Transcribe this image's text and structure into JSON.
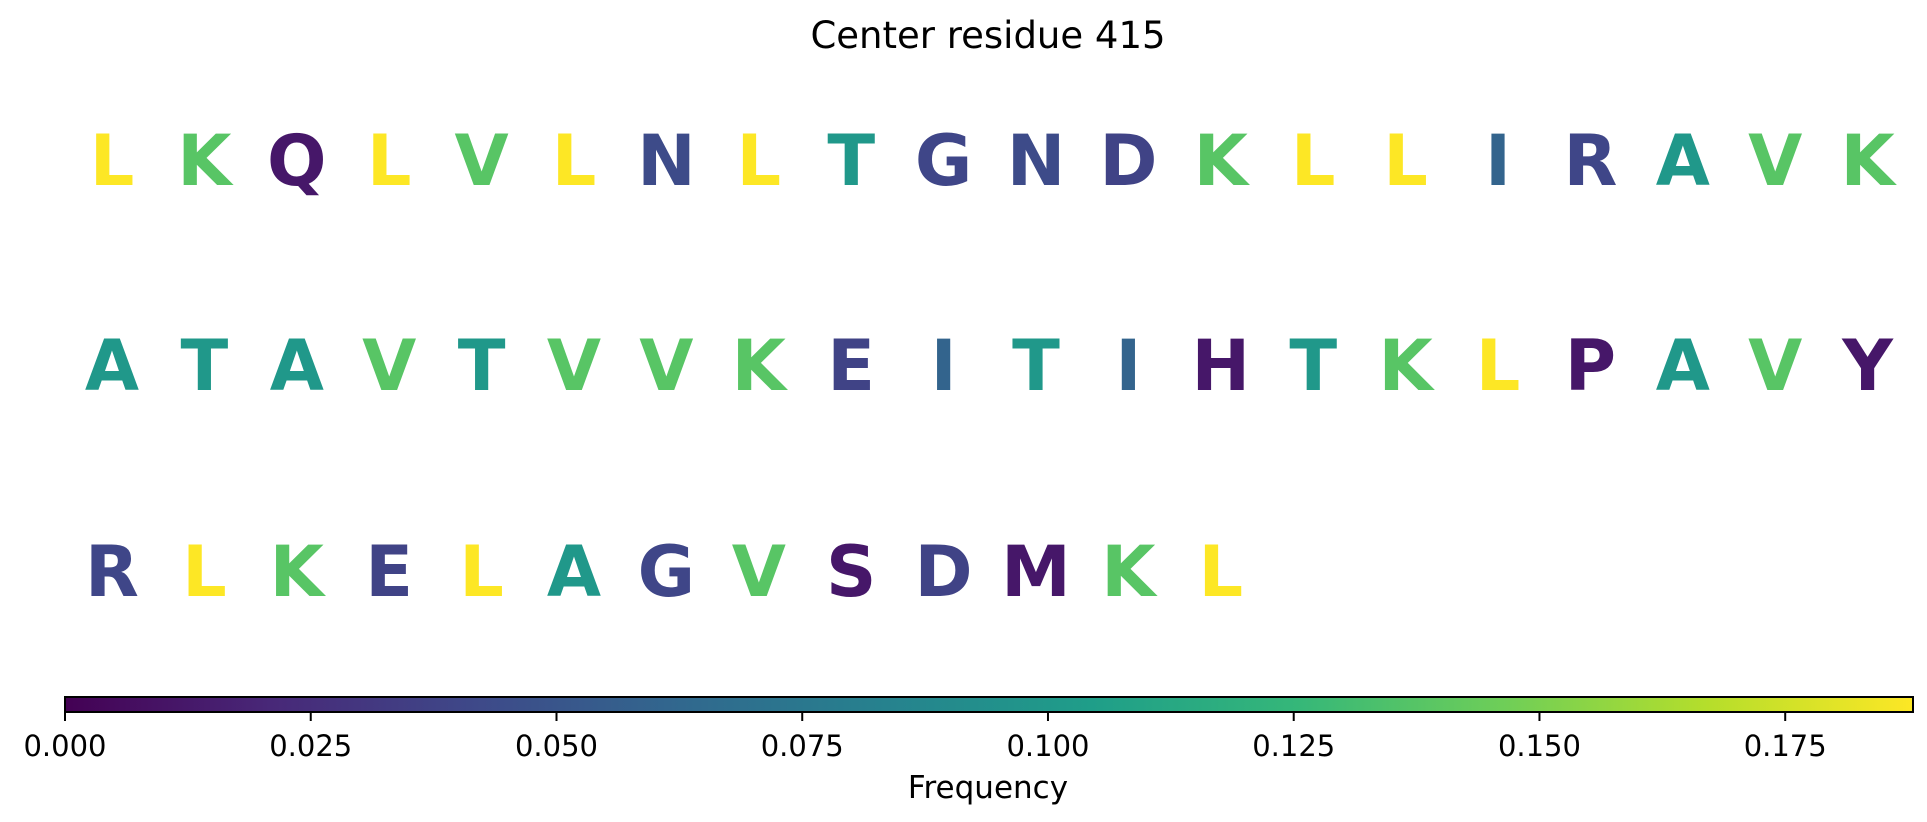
{
  "chart_data": {
    "type": "sequence-logo",
    "title": "Center residue 415",
    "rows": [
      {
        "letters": [
          "L",
          "K",
          "Q",
          "L",
          "V",
          "L",
          "N",
          "L",
          "T",
          "G",
          "N",
          "D",
          "K",
          "L",
          "L",
          "I",
          "R",
          "A",
          "V",
          "K"
        ],
        "values": [
          0.188,
          0.138,
          0.012,
          0.188,
          0.138,
          0.188,
          0.043,
          0.188,
          0.1,
          0.04,
          0.043,
          0.038,
          0.138,
          0.188,
          0.188,
          0.06,
          0.04,
          0.1,
          0.138,
          0.138
        ]
      },
      {
        "letters": [
          "A",
          "T",
          "A",
          "V",
          "T",
          "V",
          "V",
          "K",
          "E",
          "I",
          "T",
          "I",
          "H",
          "T",
          "K",
          "L",
          "P",
          "A",
          "V",
          "Y"
        ],
        "values": [
          0.1,
          0.1,
          0.1,
          0.138,
          0.1,
          0.138,
          0.138,
          0.138,
          0.038,
          0.06,
          0.1,
          0.06,
          0.012,
          0.1,
          0.138,
          0.188,
          0.012,
          0.1,
          0.138,
          0.012
        ]
      },
      {
        "letters": [
          "R",
          "L",
          "K",
          "E",
          "L",
          "A",
          "G",
          "V",
          "S",
          "D",
          "M",
          "K",
          "L"
        ],
        "values": [
          0.04,
          0.188,
          0.138,
          0.038,
          0.188,
          0.1,
          0.04,
          0.138,
          0.012,
          0.038,
          0.012,
          0.138,
          0.188
        ]
      }
    ],
    "colorbar": {
      "label": "Frequency",
      "range": [
        0,
        0.188
      ],
      "colormap": "viridis",
      "ticks": [
        0.0,
        0.025,
        0.05,
        0.075,
        0.1,
        0.125,
        0.15,
        0.175
      ],
      "tick_labels": [
        "0.000",
        "0.025",
        "0.050",
        "0.075",
        "0.100",
        "0.125",
        "0.150",
        "0.175"
      ]
    }
  }
}
